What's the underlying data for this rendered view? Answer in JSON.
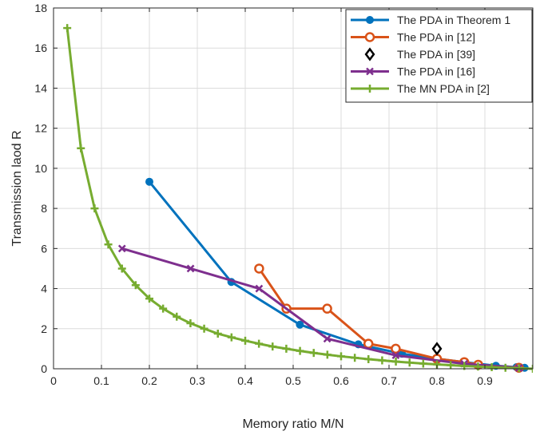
{
  "chart_data": {
    "type": "line",
    "xlabel": "Memory ratio M/N",
    "ylabel": "Transmission laod R",
    "xlim": [
      0,
      1
    ],
    "ylim": [
      0,
      18
    ],
    "xticks": [
      0,
      0.1,
      0.2,
      0.3,
      0.4,
      0.5,
      0.6,
      0.7,
      0.8,
      0.9
    ],
    "xtick_labels": [
      "0",
      "0.1",
      "0.2",
      "0.3",
      "0.4",
      "0.5",
      "0.6",
      "0.7",
      "0.8",
      "0.9"
    ],
    "yticks": [
      0,
      2,
      4,
      6,
      8,
      10,
      12,
      14,
      16,
      18
    ],
    "ytick_labels": [
      "0",
      "2",
      "4",
      "6",
      "8",
      "10",
      "12",
      "14",
      "16",
      "18"
    ],
    "grid": true,
    "legend_position": "top-right",
    "series": [
      {
        "name": "The PDA in Theorem 1",
        "color": "#0072BD",
        "marker": "filled-circle",
        "line": true,
        "x": [
          0.2,
          0.371,
          0.514,
          0.636,
          0.727,
          0.8,
          0.857,
          0.923,
          0.966,
          0.983
        ],
        "y": [
          9.33,
          4.33,
          2.2,
          1.22,
          0.75,
          0.5,
          0.33,
          0.15,
          0.08,
          0.05
        ]
      },
      {
        "name": "The PDA in [12]",
        "color": "#D95319",
        "marker": "open-circle",
        "line": true,
        "x": [
          0.429,
          0.486,
          0.571,
          0.657,
          0.714,
          0.8,
          0.857,
          0.886,
          0.971
        ],
        "y": [
          5.0,
          3.0,
          3.0,
          1.25,
          1.0,
          0.5,
          0.33,
          0.2,
          0.05
        ]
      },
      {
        "name": "The PDA in [39]",
        "color": "#000000",
        "marker": "open-diamond",
        "line": false,
        "x": [
          0.8
        ],
        "y": [
          1.0
        ]
      },
      {
        "name": "The PDA in [16]",
        "color": "#7E2F8E",
        "marker": "x",
        "line": true,
        "x": [
          0.143,
          0.286,
          0.429,
          0.571,
          0.714,
          0.857,
          0.971
        ],
        "y": [
          6.0,
          5.0,
          4.0,
          1.5,
          0.67,
          0.25,
          0.04
        ]
      },
      {
        "name": "The MN PDA in [2]",
        "color": "#77AC30",
        "marker": "plus",
        "line": true,
        "x": [
          0.0286,
          0.0571,
          0.0857,
          0.1143,
          0.1429,
          0.1714,
          0.2,
          0.2286,
          0.2571,
          0.2857,
          0.3143,
          0.3429,
          0.3714,
          0.4,
          0.4286,
          0.4571,
          0.4857,
          0.5143,
          0.5429,
          0.5714,
          0.6,
          0.6286,
          0.6571,
          0.6857,
          0.7143,
          0.7429,
          0.7714,
          0.8,
          0.8286,
          0.8571,
          0.8857,
          0.9143,
          0.9429,
          0.9714,
          1.0
        ],
        "y": [
          17.0,
          11.0,
          8.0,
          6.2,
          5.0,
          4.17,
          3.5,
          3.0,
          2.6,
          2.27,
          2.0,
          1.75,
          1.57,
          1.4,
          1.25,
          1.11,
          1.0,
          0.89,
          0.79,
          0.7,
          0.62,
          0.55,
          0.48,
          0.42,
          0.36,
          0.31,
          0.26,
          0.22,
          0.18,
          0.14,
          0.11,
          0.08,
          0.05,
          0.03,
          0.0
        ]
      }
    ]
  }
}
